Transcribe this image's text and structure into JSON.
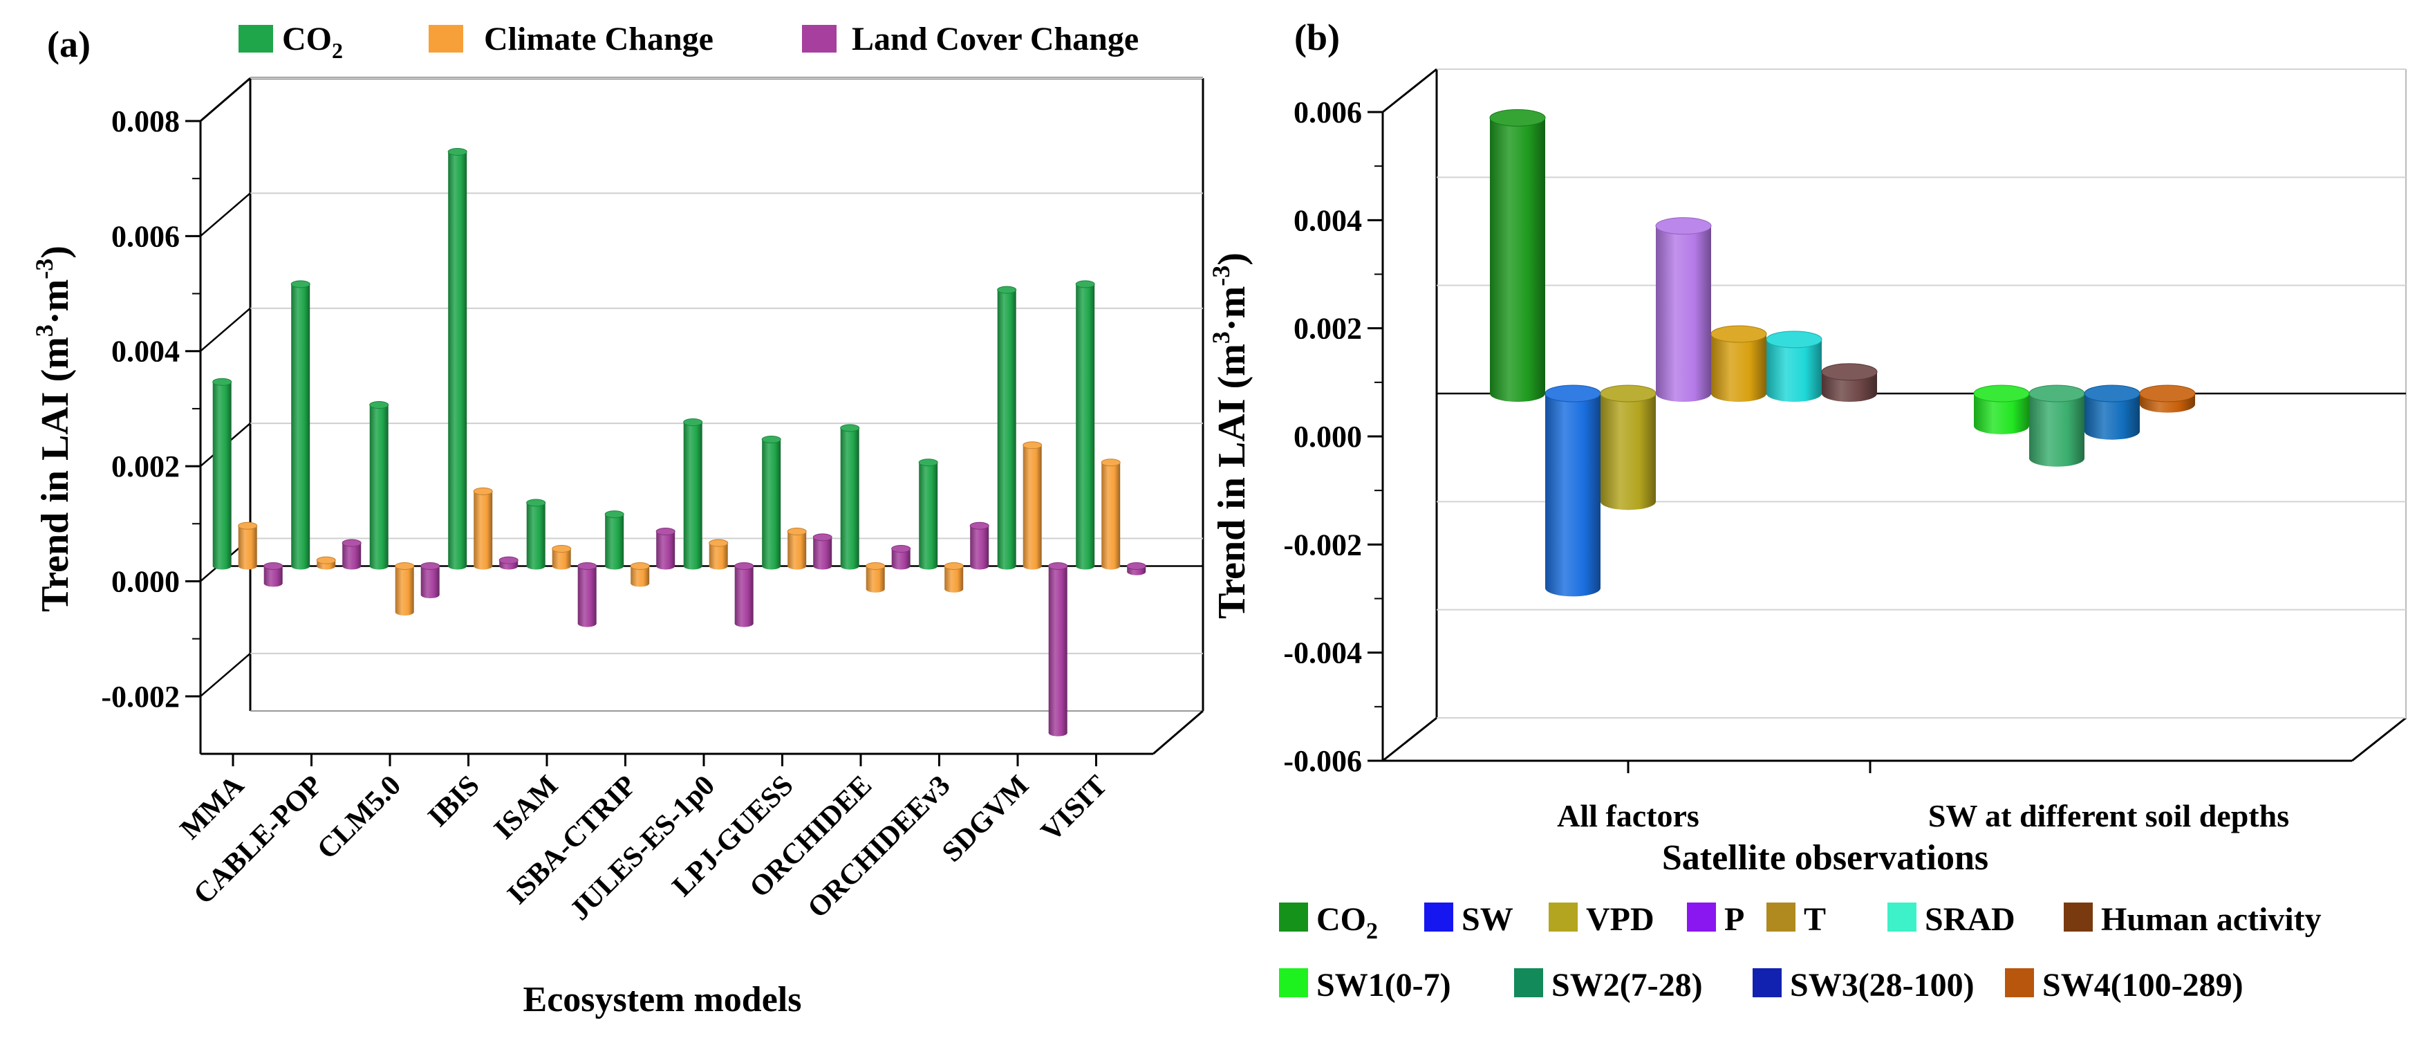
{
  "chart_data": [
    {
      "type": "bar",
      "panel_label": "(a)",
      "xlabel": "Ecosystem models",
      "ylabel_main": "Trend in LAI (m",
      "ylabel_sup1": "3",
      "ylabel_mid": "·m",
      "ylabel_sup2": "-3",
      "ylabel_end": ")",
      "ylim": [
        -0.003,
        0.008
      ],
      "yticks": [
        "-0.002",
        "0.000",
        "0.002",
        "0.004",
        "0.006",
        "0.008"
      ],
      "ytick_values": [
        -0.002,
        0.0,
        0.002,
        0.004,
        0.006,
        0.008
      ],
      "categories": [
        "MMA",
        "CABLE-POP",
        "CLM5.0",
        "IBIS",
        "ISAM",
        "ISBA-CTRIP",
        "JULES-ES-1p0",
        "LPJ-GUESS",
        "ORCHIDEE",
        "ORCHIDEEv3",
        "SDGVM",
        "VISIT"
      ],
      "series": [
        {
          "name": "CO2",
          "label_main": "CO",
          "label_sub": "2",
          "color": "#1fa64a",
          "values": [
            0.0032,
            0.0049,
            0.0028,
            0.0072,
            0.0011,
            0.0009,
            0.0025,
            0.0022,
            0.0024,
            0.0018,
            0.0048,
            0.0049
          ]
        },
        {
          "name": "Climate Change",
          "label_main": "Climate Change",
          "color": "#f7a03a",
          "values": [
            0.0007,
            0.0001,
            -0.0008,
            0.0013,
            0.0003,
            -0.0003,
            0.0004,
            0.0006,
            -0.0004,
            -0.0004,
            0.0021,
            0.0018
          ]
        },
        {
          "name": "Land Cover Change",
          "label_main": "Land Cover Change",
          "color": "#a63f9e",
          "values": [
            -0.0003,
            0.0004,
            -0.0005,
            0.0001,
            -0.001,
            0.0006,
            -0.001,
            0.0005,
            0.0003,
            0.0007,
            -0.0029,
            -0.0001
          ]
        }
      ]
    },
    {
      "type": "bar",
      "panel_label": "(b)",
      "xlabel": "Satellite observations",
      "ylabel_main": "Trend in LAI (m",
      "ylabel_sup1": "3",
      "ylabel_mid": "·m",
      "ylabel_sup2": "-3",
      "ylabel_end": ")",
      "ylim": [
        -0.006,
        0.006
      ],
      "yticks": [
        "-0.006",
        "-0.004",
        "-0.002",
        "0.000",
        "0.002",
        "0.004",
        "0.006"
      ],
      "ytick_values": [
        -0.006,
        -0.004,
        -0.002,
        0.0,
        0.002,
        0.004,
        0.006
      ],
      "categories": [
        "All factors",
        "SW at different soil depths"
      ],
      "groups": [
        {
          "category": "All factors",
          "bars": [
            {
              "name": "CO2",
              "value": 0.0051,
              "color": "#1e9a1e"
            },
            {
              "name": "SW",
              "value": -0.0036,
              "color": "#1a6fe0"
            },
            {
              "name": "VPD",
              "value": -0.002,
              "color": "#b3a51f"
            },
            {
              "name": "P",
              "value": 0.0031,
              "color": "#b57ae8"
            },
            {
              "name": "T",
              "value": 0.0011,
              "color": "#d8a010"
            },
            {
              "name": "SRAD",
              "value": 0.001,
              "color": "#1fd8d8"
            },
            {
              "name": "Human activity",
              "value": 0.0004,
              "color": "#6e4646"
            }
          ]
        },
        {
          "category": "SW at different soil depths",
          "bars": [
            {
              "name": "SW1(0-7)",
              "value": -0.0006,
              "color": "#22e622"
            },
            {
              "name": "SW2(7-28)",
              "value": -0.0012,
              "color": "#3aae6e"
            },
            {
              "name": "SW3(28-100)",
              "value": -0.0007,
              "color": "#126ebd"
            },
            {
              "name": "SW4(100-289)",
              "value": -0.0002,
              "color": "#c8600a"
            }
          ]
        }
      ],
      "legend_row1": [
        {
          "label_main": "CO",
          "label_sub": "2",
          "color": "#15921a"
        },
        {
          "label_main": "SW",
          "color": "#1616f0"
        },
        {
          "label_main": "VPD",
          "color": "#b3a51f"
        },
        {
          "label_main": "P",
          "color": "#8a16f0"
        },
        {
          "label_main": "T",
          "color": "#b08a1e"
        },
        {
          "label_main": "SRAD",
          "color": "#3df2c8"
        },
        {
          "label_main": "Human activity",
          "color": "#7a3a10"
        }
      ],
      "legend_row2": [
        {
          "label_main": "SW1(0-7)",
          "color": "#1ef21e"
        },
        {
          "label_main": "SW2(7-28)",
          "color": "#138a5a"
        },
        {
          "label_main": "SW3(28-100)",
          "color": "#1222b0"
        },
        {
          "label_main": "SW4(100-289)",
          "color": "#b8560e"
        }
      ]
    }
  ]
}
